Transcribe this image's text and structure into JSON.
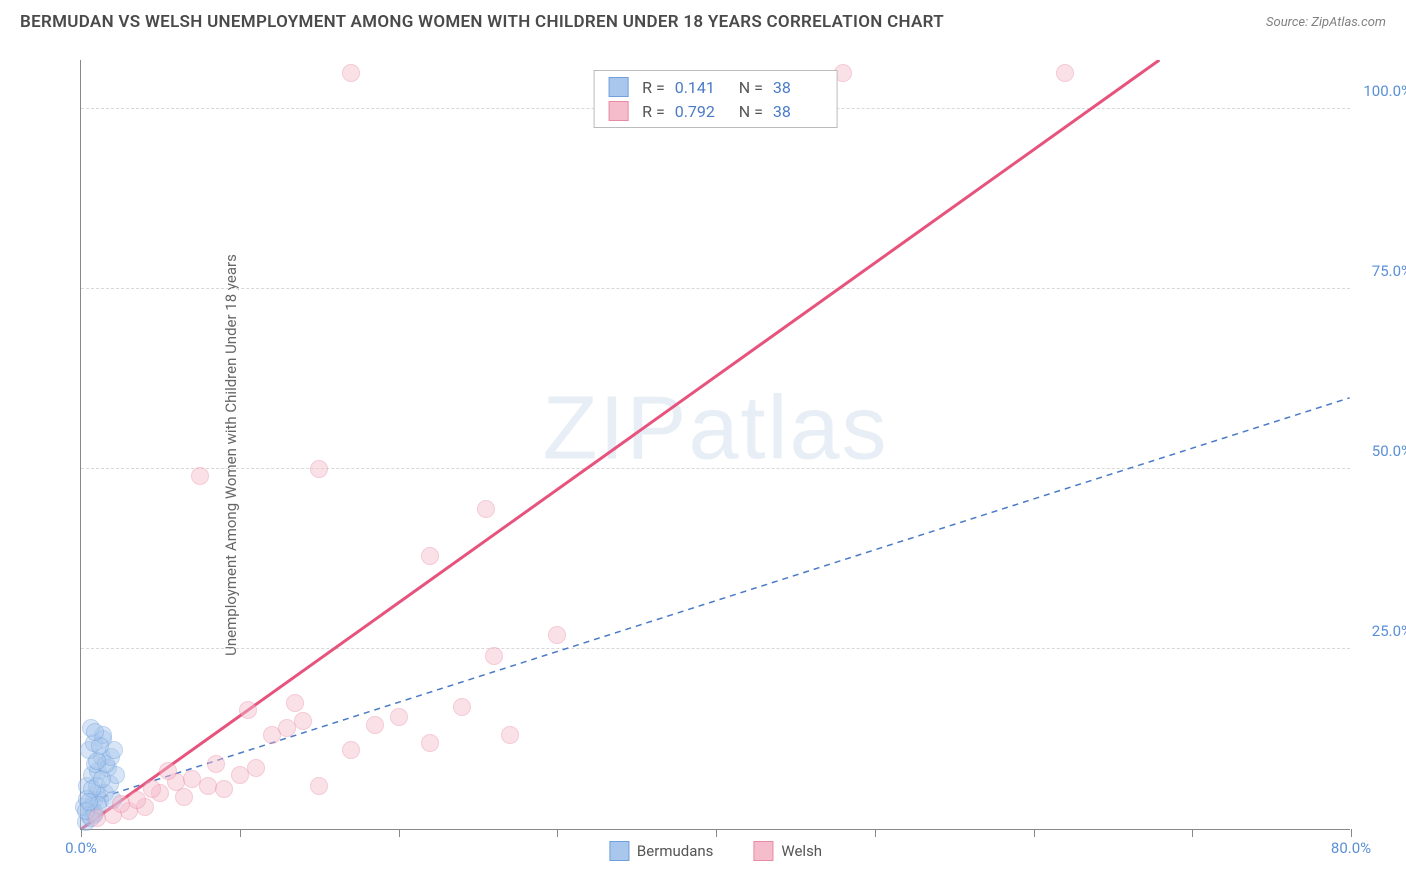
{
  "header": {
    "title": "BERMUDAN VS WELSH UNEMPLOYMENT AMONG WOMEN WITH CHILDREN UNDER 18 YEARS CORRELATION CHART",
    "source": "Source: ZipAtlas.com"
  },
  "chart": {
    "type": "scatter",
    "ylabel": "Unemployment Among Women with Children Under 18 years",
    "watermark": "ZIPatlas",
    "xlim": [
      0,
      80
    ],
    "ylim": [
      0,
      107
    ],
    "xtick_positions": [
      0,
      10,
      20,
      30,
      40,
      50,
      60,
      70,
      80
    ],
    "xtick_labels": {
      "0": "0.0%",
      "80": "80.0%"
    },
    "ytick_positions": [
      25,
      50,
      75,
      100
    ],
    "ytick_labels": [
      "25.0%",
      "50.0%",
      "75.0%",
      "100.0%"
    ],
    "background_color": "#ffffff",
    "grid_color": "#d8d8d8",
    "axis_color": "#888888",
    "tick_label_color": "#5a8fd6",
    "marker_radius": 9,
    "marker_opacity": 0.45,
    "series": [
      {
        "name": "Bermudans",
        "color_fill": "#a9c7ec",
        "color_stroke": "#6fa0dd",
        "trend_color": "#4a7ac7",
        "trend_dash": "6,5",
        "trend_width": 1.5,
        "stats": {
          "R": "0.141",
          "N": "38"
        },
        "trend": {
          "x1": 0,
          "y1": 3.5,
          "x2": 80,
          "y2": 60
        },
        "points": [
          [
            0.3,
            1
          ],
          [
            0.5,
            2
          ],
          [
            0.6,
            3
          ],
          [
            0.8,
            4
          ],
          [
            1.0,
            5
          ],
          [
            0.4,
            6
          ],
          [
            0.7,
            7.5
          ],
          [
            1.1,
            8
          ],
          [
            0.9,
            9
          ],
          [
            1.3,
            10
          ],
          [
            0.5,
            11
          ],
          [
            1.4,
            12.5
          ],
          [
            0.2,
            3
          ],
          [
            1.2,
            4
          ],
          [
            0.8,
            2
          ],
          [
            1.0,
            6
          ],
          [
            1.5,
            5
          ],
          [
            2.0,
            4
          ],
          [
            1.7,
            8.5
          ],
          [
            0.6,
            1.5
          ],
          [
            0.9,
            2.2
          ],
          [
            1.1,
            3.3
          ],
          [
            1.8,
            6.2
          ],
          [
            2.2,
            7.5
          ],
          [
            0.4,
            4.2
          ],
          [
            0.7,
            5.5
          ],
          [
            1.3,
            7
          ],
          [
            1.6,
            9
          ],
          [
            0.3,
            2.5
          ],
          [
            0.5,
            3.8
          ],
          [
            1.9,
            10
          ],
          [
            2.1,
            11
          ],
          [
            1.0,
            9.5
          ],
          [
            0.8,
            12
          ],
          [
            1.4,
            13
          ],
          [
            0.6,
            14
          ],
          [
            1.2,
            11.5
          ],
          [
            0.9,
            13.5
          ]
        ]
      },
      {
        "name": "Welsh",
        "color_fill": "#f5bccb",
        "color_stroke": "#ea8ba6",
        "trend_color": "#e6537d",
        "trend_dash": "none",
        "trend_width": 3,
        "stats": {
          "R": "0.792",
          "N": "38"
        },
        "trend": {
          "x1": 0,
          "y1": 0,
          "x2": 68,
          "y2": 107
        },
        "points": [
          [
            1.0,
            1.5
          ],
          [
            2.0,
            2
          ],
          [
            3.0,
            2.5
          ],
          [
            4.0,
            3
          ],
          [
            5.0,
            5
          ],
          [
            3.5,
            4
          ],
          [
            6.0,
            6.5
          ],
          [
            7.0,
            7
          ],
          [
            8.0,
            6
          ],
          [
            5.5,
            8
          ],
          [
            9.0,
            5.5
          ],
          [
            10.0,
            7.5
          ],
          [
            11.0,
            8.5
          ],
          [
            6.5,
            4.5
          ],
          [
            12.0,
            13
          ],
          [
            13.0,
            14
          ],
          [
            14.0,
            15
          ],
          [
            15.0,
            6
          ],
          [
            10.5,
            16.5
          ],
          [
            13.5,
            17.5
          ],
          [
            17.0,
            11
          ],
          [
            18.5,
            14.5
          ],
          [
            20.0,
            15.5
          ],
          [
            22.0,
            12
          ],
          [
            24.0,
            17
          ],
          [
            26.0,
            24
          ],
          [
            27.0,
            13
          ],
          [
            30.0,
            27
          ],
          [
            7.5,
            49
          ],
          [
            15.0,
            50
          ],
          [
            17.0,
            105
          ],
          [
            22.0,
            38
          ],
          [
            25.5,
            44.5
          ],
          [
            48.0,
            105
          ],
          [
            62.0,
            105
          ],
          [
            2.5,
            3.5
          ],
          [
            4.5,
            5.5
          ],
          [
            8.5,
            9
          ]
        ]
      }
    ],
    "legend": {
      "items": [
        {
          "label": "Bermudans",
          "fill": "#a9c7ec",
          "stroke": "#6fa0dd"
        },
        {
          "label": "Welsh",
          "fill": "#f5bccb",
          "stroke": "#ea8ba6"
        }
      ]
    }
  }
}
